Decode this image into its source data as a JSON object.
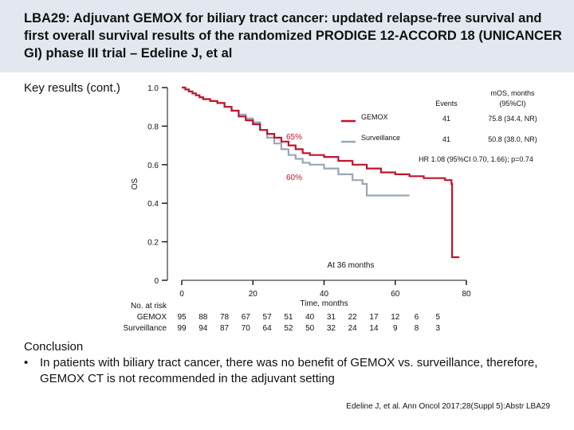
{
  "slide": {
    "title": "LBA29: Adjuvant GEMOX for biliary tract cancer: updated relapse-free survival and first overall survival results of the randomized PRODIGE 12-ACCORD 18 (UNICANCER GI) phase III trial – Edeline J, et al",
    "subtitle": "Key results (cont.)",
    "conclusion_heading": "Conclusion",
    "conclusion_bullet": "•",
    "conclusion_text": "In patients with biliary tract cancer, there was no benefit of GEMOX vs. surveillance, therefore, GEMOX CT is not recommended in the adjuvant setting",
    "footnote": "Edeline J, et al. Ann Oncol 2017;28(Suppl 5):Abstr LBA29"
  },
  "chart_data": {
    "type": "line",
    "xlabel": "Time, months",
    "ylabel": "OS",
    "xlim": [
      0,
      80
    ],
    "ylim": [
      0,
      1.0
    ],
    "x_ticks": [
      0,
      20,
      40,
      60,
      80
    ],
    "y_ticks": [
      0,
      0.2,
      0.4,
      0.6,
      0.8,
      1.0
    ],
    "y_tick_labels": [
      "0",
      "0.2",
      "0.4",
      "0.6",
      "0.8",
      "1.0"
    ],
    "series": [
      {
        "name": "GEMOX",
        "color": "#c0142c",
        "events": "41",
        "median": "75.8 (34.4, NR)",
        "x": [
          0,
          1,
          2,
          3,
          4,
          5,
          6,
          8,
          10,
          12,
          14,
          16,
          18,
          20,
          22,
          24,
          26,
          28,
          30,
          32,
          34,
          36,
          40,
          44,
          48,
          52,
          56,
          60,
          64,
          68,
          72,
          74,
          75.8,
          76,
          78
        ],
        "y": [
          1.0,
          0.99,
          0.98,
          0.97,
          0.96,
          0.95,
          0.94,
          0.93,
          0.92,
          0.9,
          0.88,
          0.85,
          0.83,
          0.81,
          0.78,
          0.76,
          0.74,
          0.72,
          0.7,
          0.68,
          0.66,
          0.65,
          0.64,
          0.62,
          0.6,
          0.58,
          0.56,
          0.55,
          0.54,
          0.53,
          0.53,
          0.52,
          0.5,
          0.12,
          0.12
        ]
      },
      {
        "name": "Surveillance",
        "color": "#9aa6b8",
        "events": "41",
        "median": "50.8 (38.0, NR)",
        "x": [
          0,
          1,
          2,
          3,
          4,
          5,
          6,
          8,
          10,
          12,
          14,
          16,
          18,
          20,
          22,
          24,
          26,
          28,
          30,
          32,
          34,
          36,
          40,
          44,
          48,
          50.8,
          52,
          56,
          60,
          64
        ],
        "y": [
          1.0,
          0.99,
          0.98,
          0.97,
          0.96,
          0.95,
          0.94,
          0.93,
          0.92,
          0.9,
          0.88,
          0.86,
          0.84,
          0.82,
          0.78,
          0.74,
          0.71,
          0.68,
          0.65,
          0.63,
          0.61,
          0.6,
          0.58,
          0.55,
          0.52,
          0.5,
          0.44,
          0.44,
          0.44,
          0.44
        ]
      }
    ],
    "legend": {
      "header_events": "Events",
      "header_median": "mOS, months (95%CI)"
    },
    "annotations": {
      "gemox_36": "65%",
      "surv_36": "60%",
      "at36": "At 36 months",
      "hr": "HR 1.08 (95%CI 0.70, 1.66); p=0.74"
    },
    "risk_table": {
      "header": "No. at risk",
      "rows": [
        {
          "label": "GEMOX",
          "values": [
            "95",
            "88",
            "78",
            "67",
            "57",
            "51",
            "40",
            "31",
            "22",
            "17",
            "12",
            "6",
            "5"
          ]
        },
        {
          "label": "Surveillance",
          "values": [
            "99",
            "94",
            "87",
            "70",
            "64",
            "52",
            "50",
            "32",
            "24",
            "14",
            "9",
            "8",
            "3"
          ]
        }
      ],
      "times": [
        0,
        6,
        12,
        18,
        24,
        30,
        36,
        42,
        48,
        54,
        60,
        66,
        72
      ]
    }
  }
}
